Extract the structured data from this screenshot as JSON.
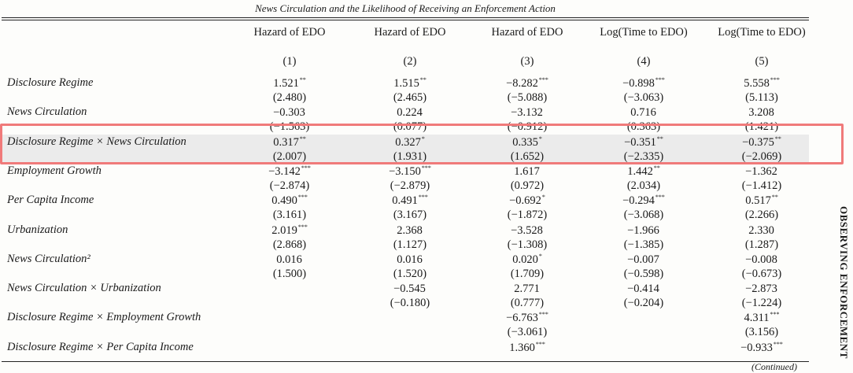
{
  "caption": "News Circulation and the Likelihood of Receiving an Enforcement Action",
  "columns": [
    {
      "header": "Hazard of EDO",
      "num": "(1)"
    },
    {
      "header": "Hazard of EDO",
      "num": "(2)"
    },
    {
      "header": "Hazard of EDO",
      "num": "(3)"
    },
    {
      "header": "Log(Time to EDO)",
      "num": "(4)"
    },
    {
      "header": "Log(Time to EDO)",
      "num": "(5)"
    }
  ],
  "rows": [
    {
      "label": "Disclosure Regime",
      "coef": [
        [
          "1.521",
          "**"
        ],
        [
          "1.515",
          "**"
        ],
        [
          "−8.282",
          "***"
        ],
        [
          "−0.898",
          "***"
        ],
        [
          "5.558",
          "***"
        ]
      ],
      "t": [
        "(2.480)",
        "(2.465)",
        "(−5.088)",
        "(−3.063)",
        "(5.113)"
      ]
    },
    {
      "label": "News Circulation",
      "coef": [
        [
          "−0.303",
          ""
        ],
        [
          "0.224",
          ""
        ],
        [
          "−3.132",
          ""
        ],
        [
          "0.716",
          ""
        ],
        [
          "3.208",
          ""
        ]
      ],
      "t": [
        "(−1.563)",
        "(0.077)",
        "(−0.912)",
        "(0.363)",
        "(1.421)"
      ]
    },
    {
      "label": "Disclosure Regime × News Circulation",
      "coef": [
        [
          "0.317",
          "**"
        ],
        [
          "0.327",
          "*"
        ],
        [
          "0.335",
          "*"
        ],
        [
          "−0.351",
          "**"
        ],
        [
          "−0.375",
          "**"
        ]
      ],
      "t": [
        "(2.007)",
        "(1.931)",
        "(1.652)",
        "(−2.335)",
        "(−2.069)"
      ]
    },
    {
      "label": "Employment Growth",
      "coef": [
        [
          "−3.142",
          "***"
        ],
        [
          "−3.150",
          "***"
        ],
        [
          "1.617",
          ""
        ],
        [
          "1.442",
          "**"
        ],
        [
          "−1.362",
          ""
        ]
      ],
      "t": [
        "(−2.874)",
        "(−2.879)",
        "(0.972)",
        "(2.034)",
        "(−1.412)"
      ]
    },
    {
      "label": "Per Capita Income",
      "coef": [
        [
          "0.490",
          "***"
        ],
        [
          "0.491",
          "***"
        ],
        [
          "−0.692",
          "*"
        ],
        [
          "−0.294",
          "***"
        ],
        [
          "0.517",
          "**"
        ]
      ],
      "t": [
        "(3.161)",
        "(3.167)",
        "(−1.872)",
        "(−3.068)",
        "(2.266)"
      ]
    },
    {
      "label": "Urbanization",
      "coef": [
        [
          "2.019",
          "***"
        ],
        [
          "2.368",
          ""
        ],
        [
          "−3.528",
          ""
        ],
        [
          "−1.966",
          ""
        ],
        [
          "2.330",
          ""
        ]
      ],
      "t": [
        "(2.868)",
        "(1.127)",
        "(−1.308)",
        "(−1.385)",
        "(1.287)"
      ]
    },
    {
      "label": "News Circulation²",
      "coef": [
        [
          "0.016",
          ""
        ],
        [
          "0.016",
          ""
        ],
        [
          "0.020",
          "*"
        ],
        [
          "−0.007",
          ""
        ],
        [
          "−0.008",
          ""
        ]
      ],
      "t": [
        "(1.500)",
        "(1.520)",
        "(1.709)",
        "(−0.598)",
        "(−0.673)"
      ]
    },
    {
      "label": "News Circulation × Urbanization",
      "coef": [
        [
          "",
          ""
        ],
        [
          "−0.545",
          ""
        ],
        [
          "2.771",
          ""
        ],
        [
          "−0.414",
          ""
        ],
        [
          "−2.873",
          ""
        ]
      ],
      "t": [
        "",
        "(−0.180)",
        "(0.777)",
        "(−0.204)",
        "(−1.224)"
      ]
    },
    {
      "label": "Disclosure Regime × Employment Growth",
      "coef": [
        [
          "",
          ""
        ],
        [
          "",
          ""
        ],
        [
          "−6.763",
          "***"
        ],
        [
          "",
          ""
        ],
        [
          "4.311",
          "***"
        ]
      ],
      "t": [
        "",
        "",
        "(−3.061)",
        "",
        "(3.156)"
      ]
    },
    {
      "label": "Disclosure Regime × Per Capita Income",
      "coef": [
        [
          "",
          ""
        ],
        [
          "",
          ""
        ],
        [
          "1.360",
          "***"
        ],
        [
          "",
          ""
        ],
        [
          "−0.933",
          "***"
        ]
      ],
      "t": [
        "",
        "",
        "",
        "",
        ""
      ]
    }
  ],
  "side_label": "OBSERVING ENFORCEMENT",
  "continued": "(Continued)"
}
